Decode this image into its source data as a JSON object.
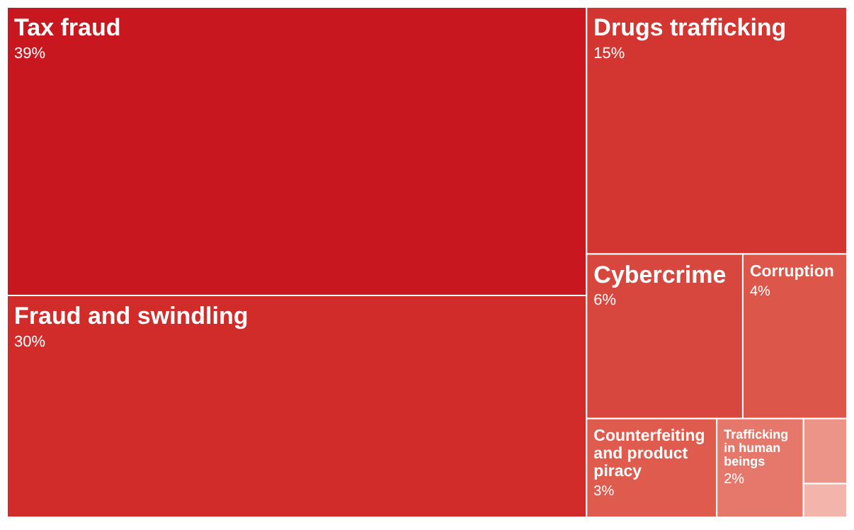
{
  "chart_data": {
    "type": "other",
    "categories": [
      "Tax fraud",
      "Fraud and swindling",
      "Drugs trafficking",
      "Cybercrime",
      "Corruption",
      "Counterfeiting and product piracy",
      "Trafficking in human beings",
      null,
      null
    ],
    "values": [
      39,
      30,
      15,
      6,
      4,
      3,
      2,
      null,
      null
    ],
    "value_labels": [
      "39%",
      "30%",
      "15%",
      "6%",
      "4%",
      "3%",
      "2%",
      null,
      null
    ],
    "colors": [
      "#c8171e",
      "#d12c2a",
      "#d33530",
      "#d8473d",
      "#dc5749",
      "#de5b4d",
      "#e5786b",
      "#eb9487",
      "#f2b4ab"
    ]
  }
}
